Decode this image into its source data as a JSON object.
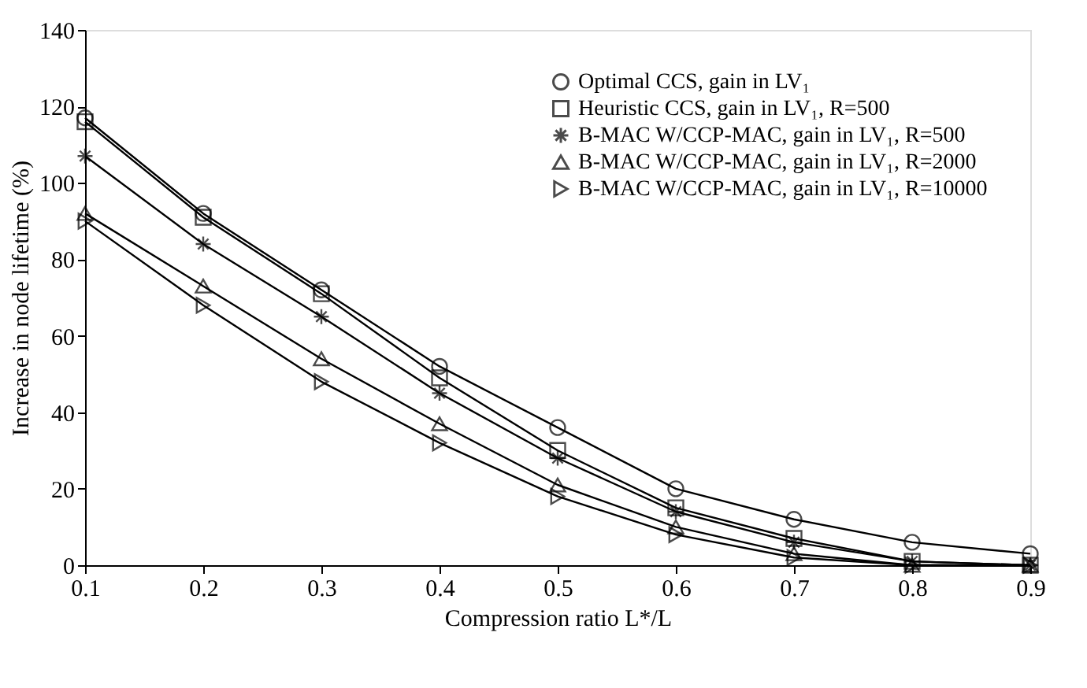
{
  "chart_data": {
    "type": "line",
    "xlabel": "Compression ratio L*/L",
    "ylabel": "Increase in node lifetime (%)",
    "x": [
      0.1,
      0.2,
      0.3,
      0.4,
      0.5,
      0.6,
      0.7,
      0.8,
      0.9
    ],
    "xlim": [
      0.1,
      0.9
    ],
    "xticks": [
      0.1,
      0.2,
      0.3,
      0.4,
      0.5,
      0.6,
      0.7,
      0.8,
      0.9
    ],
    "ylim": [
      0,
      140
    ],
    "yticks": [
      0,
      20,
      40,
      60,
      80,
      100,
      120,
      140
    ],
    "grid": false,
    "legend": "top right",
    "series": [
      {
        "name": "Optimal CCS, gain in LV₁",
        "color": "#000000",
        "marker": "circle",
        "values": [
          117,
          92,
          72,
          52,
          36,
          20,
          12,
          6,
          3
        ]
      },
      {
        "name": "Heuristic CCS, gain in LV₁, R=500",
        "color": "#000000",
        "marker": "square",
        "values": [
          116,
          91,
          71,
          49,
          30,
          15,
          7,
          1,
          0
        ]
      },
      {
        "name": "B-MAC W/CCP-MAC, gain in LV₁, R=500",
        "color": "#000000",
        "marker": "cross",
        "values": [
          107,
          84,
          65,
          45,
          28,
          14,
          6,
          1,
          0
        ]
      },
      {
        "name": "B-MAC W/CCP-MAC, gain in LV₁, R=2000",
        "color": "#000000",
        "marker": "triangle",
        "values": [
          92,
          73,
          54,
          37,
          21,
          10,
          3,
          0,
          0
        ]
      },
      {
        "name": "B-MAC W/CCP-MAC, gain in LV₁, R=10000",
        "color": "#000000",
        "marker": "triangle-right",
        "values": [
          90,
          68,
          48,
          32,
          18,
          8,
          2,
          0,
          0
        ]
      }
    ]
  }
}
